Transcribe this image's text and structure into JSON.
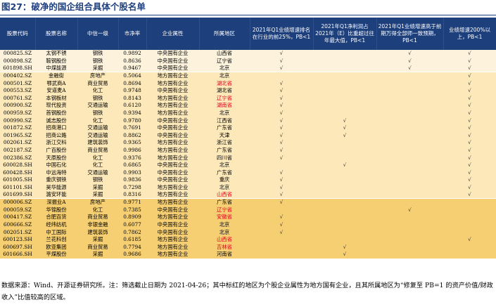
{
  "title": "图27：破净的国企组合具体个股名单",
  "columns": [
    "股票代码",
    "股票名称",
    "中信一级",
    "市净率",
    "企业属性",
    "所属地区",
    "2021年Q1业绩增速排名在行业的前25%，PB<1",
    "2021年Q1净利润占2021年（E）比重超过往年最大值，PB<1",
    "2021年Q1业绩增速高于前期万得全部师一致预期，PB<1",
    "业绩增速200%以上，PB<1"
  ],
  "check_mark": "√",
  "rows": [
    {
      "code": "000825.SZ",
      "name": "太钢不锈",
      "industry": "钢铁",
      "pb": "0.9892",
      "attr": "中央国有企业",
      "region": "山西省",
      "red": false,
      "c1": true,
      "c2": false,
      "c3": true,
      "c4": true,
      "group": 1
    },
    {
      "code": "000898.SZ",
      "name": "鞍钢股份",
      "industry": "钢铁",
      "pb": "0.8636",
      "attr": "中央国有企业",
      "region": "辽宁省",
      "red": false,
      "c1": true,
      "c2": false,
      "c3": true,
      "c4": true,
      "group": 1
    },
    {
      "code": "601898.SH",
      "name": "中煤能源",
      "industry": "采掘",
      "pb": "0.9467",
      "attr": "中央国有企业",
      "region": "北京",
      "red": false,
      "c1": true,
      "c2": false,
      "c3": true,
      "c4": true,
      "group": 1
    },
    {
      "code": "000402.SZ",
      "name": "金融街",
      "industry": "房地产",
      "pb": "0.5064",
      "attr": "地方国有企业",
      "region": "北京",
      "red": false,
      "c1": false,
      "c2": false,
      "c3": false,
      "c4": true,
      "group": 2
    },
    {
      "code": "000501.SZ",
      "name": "鄂武商A",
      "industry": "商业贸易",
      "pb": "0.8694",
      "attr": "地方国有企业",
      "region": "湖北省",
      "red": true,
      "c1": true,
      "c2": false,
      "c3": false,
      "c4": true,
      "group": 2
    },
    {
      "code": "000553.SZ",
      "name": "安道麦A",
      "industry": "化工",
      "pb": "0.9748",
      "attr": "中央国有企业",
      "region": "湖北省",
      "red": false,
      "c1": true,
      "c2": false,
      "c3": false,
      "c4": true,
      "group": 2
    },
    {
      "code": "000761.SZ",
      "name": "本钢板材",
      "industry": "钢铁",
      "pb": "0.8143",
      "attr": "地方国有企业",
      "region": "辽宁省",
      "red": true,
      "c1": true,
      "c2": false,
      "c3": false,
      "c4": true,
      "group": 2
    },
    {
      "code": "000900.SZ",
      "name": "现代投资",
      "industry": "交通运输",
      "pb": "0.6120",
      "attr": "地方国有企业",
      "region": "湖南省",
      "red": true,
      "c1": true,
      "c2": false,
      "c3": false,
      "c4": true,
      "group": 2
    },
    {
      "code": "000959.SZ",
      "name": "首钢股份",
      "industry": "钢铁",
      "pb": "0.9394",
      "attr": "地方国有企业",
      "region": "北京",
      "red": false,
      "c1": true,
      "c2": false,
      "c3": false,
      "c4": true,
      "group": 2
    },
    {
      "code": "000990.SZ",
      "name": "诚志股份",
      "industry": "化工",
      "pb": "0.9780",
      "attr": "中央国有企业",
      "region": "江西省",
      "red": false,
      "c1": true,
      "c2": true,
      "c3": false,
      "c4": true,
      "group": 2
    },
    {
      "code": "001872.SZ",
      "name": "招商港口",
      "industry": "交通运输",
      "pb": "0.7691",
      "attr": "中央国有企业",
      "region": "广东省",
      "red": false,
      "c1": true,
      "c2": true,
      "c3": false,
      "c4": true,
      "group": 2
    },
    {
      "code": "001965.SZ",
      "name": "招商公路",
      "industry": "交通运输",
      "pb": "0.8862",
      "attr": "中央国有企业",
      "region": "天津",
      "red": false,
      "c1": true,
      "c2": true,
      "c3": false,
      "c4": true,
      "group": 2
    },
    {
      "code": "002061.SZ",
      "name": "浙江交科",
      "industry": "建筑装饰",
      "pb": "0.9365",
      "attr": "地方国有企业",
      "region": "浙江省",
      "red": false,
      "c1": true,
      "c2": false,
      "c3": false,
      "c4": true,
      "group": 2
    },
    {
      "code": "002187.SZ",
      "name": "广百股份",
      "industry": "商业贸易",
      "pb": "0.9986",
      "attr": "地方国有企业",
      "region": "广东省",
      "red": false,
      "c1": true,
      "c2": false,
      "c3": false,
      "c4": true,
      "group": 2
    },
    {
      "code": "002386.SZ",
      "name": "天原股份",
      "industry": "化工",
      "pb": "0.9376",
      "attr": "地方国有企业",
      "region": "四川省",
      "red": false,
      "c1": true,
      "c2": false,
      "c3": false,
      "c4": true,
      "group": 2
    },
    {
      "code": "600028.SH",
      "name": "中国石化",
      "industry": "化工",
      "pb": "0.6865",
      "attr": "中央国有企业",
      "region": "北京",
      "red": false,
      "c1": false,
      "c2": true,
      "c3": false,
      "c4": true,
      "group": 2
    },
    {
      "code": "600428.SH",
      "name": "中远海特",
      "industry": "交通运输",
      "pb": "0.9903",
      "attr": "中央国有企业",
      "region": "广东省",
      "red": false,
      "c1": true,
      "c2": false,
      "c3": false,
      "c4": true,
      "group": 2
    },
    {
      "code": "601005.SH",
      "name": "重庆钢铁",
      "industry": "钢铁",
      "pb": "0.9836",
      "attr": "中央国有企业",
      "region": "重庆",
      "red": false,
      "c1": true,
      "c2": false,
      "c3": false,
      "c4": true,
      "group": 2
    },
    {
      "code": "601101.SH",
      "name": "昊华能源",
      "industry": "采掘",
      "pb": "0.7298",
      "attr": "地方国有企业",
      "region": "北京",
      "red": false,
      "c1": true,
      "c2": false,
      "c3": false,
      "c4": true,
      "group": 2
    },
    {
      "code": "601699.SH",
      "name": "潞安环能",
      "industry": "采掘",
      "pb": "0.8316",
      "attr": "地方国有企业",
      "region": "山西省",
      "red": true,
      "c1": true,
      "c2": false,
      "c3": false,
      "c4": true,
      "group": 2
    },
    {
      "code": "000006.SZ",
      "name": "深振业A",
      "industry": "房地产",
      "pb": "0.9771",
      "attr": "地方国有企业",
      "region": "广东省",
      "red": false,
      "c1": true,
      "c2": false,
      "c3": false,
      "c4": false,
      "group": 3
    },
    {
      "code": "000059.SZ",
      "name": "华锦股份",
      "industry": "化工",
      "pb": "0.7385",
      "attr": "中央国有企业",
      "region": "辽宁省",
      "red": true,
      "c1": false,
      "c2": false,
      "c3": true,
      "c4": false,
      "group": 3
    },
    {
      "code": "000417.SZ",
      "name": "合肥百货",
      "industry": "商业贸易",
      "pb": "0.8909",
      "attr": "地方国有企业",
      "region": "安徽省",
      "red": true,
      "c1": true,
      "c2": false,
      "c3": false,
      "c4": false,
      "group": 3
    },
    {
      "code": "600666.SZ",
      "name": "经纬纺机",
      "industry": "非银金融",
      "pb": "0.6077",
      "attr": "中央国有企业",
      "region": "北京",
      "red": false,
      "c1": true,
      "c2": false,
      "c3": false,
      "c4": false,
      "group": 3
    },
    {
      "code": "002051.SZ",
      "name": "中工国际",
      "industry": "建筑装饰",
      "pb": "0.7862",
      "attr": "中央国有企业",
      "region": "北京",
      "red": false,
      "c1": true,
      "c2": false,
      "c3": false,
      "c4": false,
      "group": 3
    },
    {
      "code": "600123.SH",
      "name": "兰花科创",
      "industry": "采掘",
      "pb": "0.6185",
      "attr": "地方国有企业",
      "region": "山西省",
      "red": true,
      "c1": false,
      "c2": false,
      "c3": false,
      "c4": true,
      "group": 3
    },
    {
      "code": "600697.SH",
      "name": "欧亚集团",
      "industry": "商业贸易",
      "pb": "0.7794",
      "attr": "地方国有企业",
      "region": "吉林省",
      "red": true,
      "c1": false,
      "c2": true,
      "c3": false,
      "c4": false,
      "group": 3
    },
    {
      "code": "601666.SH",
      "name": "平煤股份",
      "industry": "采掘",
      "pb": "0.9686",
      "attr": "地方国有企业",
      "region": "河南省",
      "red": false,
      "c1": false,
      "c2": true,
      "c3": false,
      "c4": false,
      "group": 3
    }
  ],
  "footnote": "数据来源：Wind、开源证券研究所。注：筛选截止日期为 2021-04-26；其中标红的地区为个股企业属性为地方国有企业，且其所属地区为“修复至 PB=1 的资产价值/财政收入”比值较高的区域。"
}
